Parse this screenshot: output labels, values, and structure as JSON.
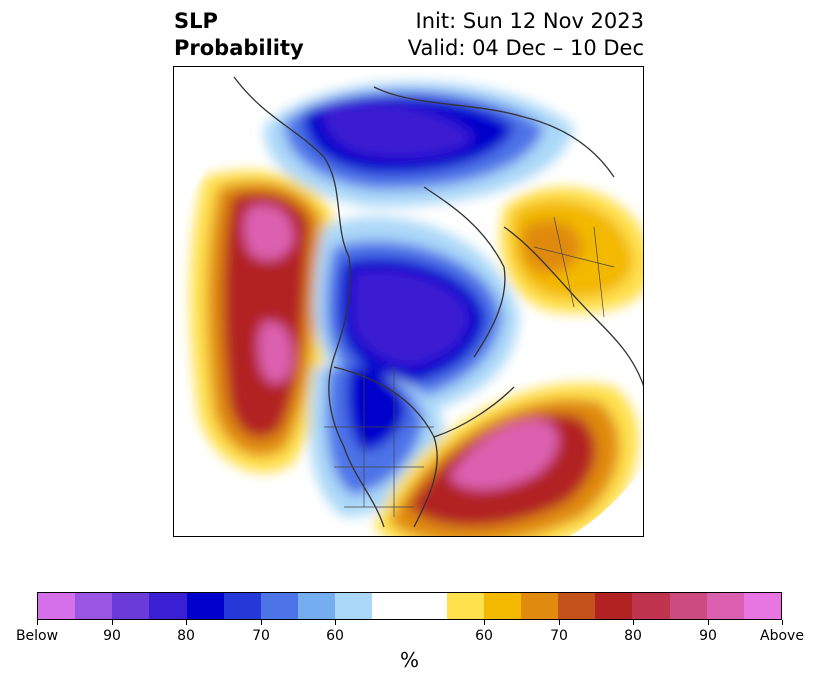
{
  "title": {
    "left_line1": "SLP",
    "left_line2": "Probability",
    "right_line1": "Init: Sun 12 Nov 2023",
    "right_line2": "Valid: 04 Dec – 10 Dec"
  },
  "colorbar": {
    "unit": "%",
    "colors_below": [
      "#d670ea",
      "#9b55e3",
      "#6a3bd8",
      "#3b1fd3",
      "#0000cc",
      "#2539d8",
      "#4d73e8",
      "#74aef0",
      "#abd8f8"
    ],
    "neutral_color": "#ffffff",
    "colors_above": [
      "#ffe04d",
      "#f3b800",
      "#e08a10",
      "#c4521c",
      "#b22222",
      "#c03450",
      "#cd4c80",
      "#dc60b0",
      "#e776e2"
    ],
    "tick_labels": [
      "Below",
      "90",
      "80",
      "70",
      "60",
      "60",
      "70",
      "80",
      "90",
      "Above"
    ]
  },
  "map": {
    "land_outline_color": "#333333",
    "below_colors": {
      "strong": "#3b1fd3",
      "mid": "#0000cc",
      "weak": "#4d73e8",
      "faint": "#abd8f8"
    },
    "above_colors": {
      "strong": "#dc60b0",
      "mid": "#b22222",
      "weak": "#e08a10",
      "faint": "#ffe04d"
    }
  }
}
